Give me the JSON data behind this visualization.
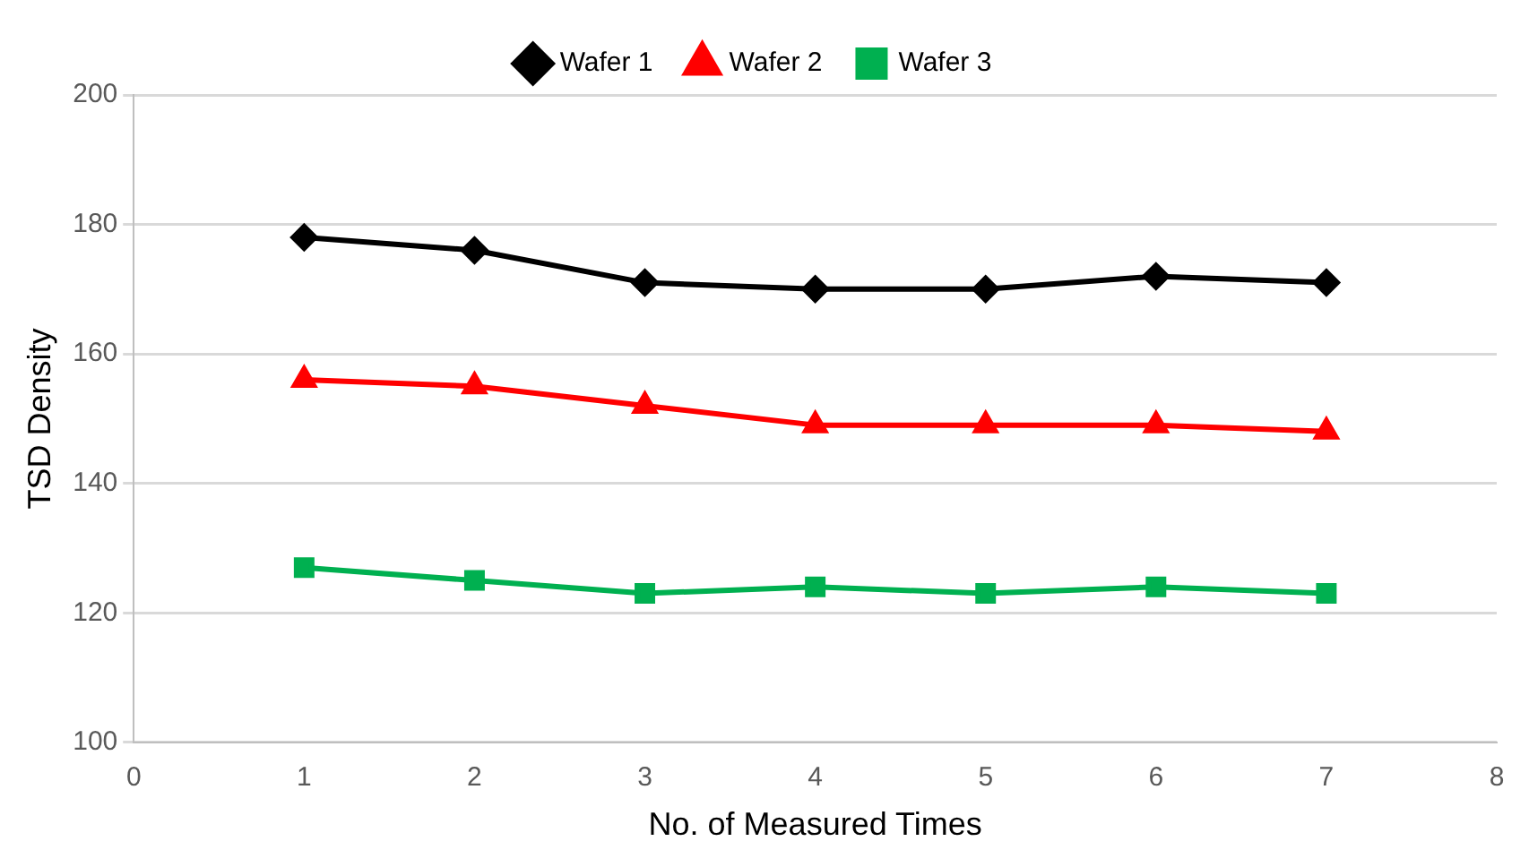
{
  "chart_data": {
    "type": "line",
    "xlabel": "No. of Measured Times",
    "ylabel": "TSD Density",
    "x": [
      1,
      2,
      3,
      4,
      5,
      6,
      7
    ],
    "series": [
      {
        "name": "Wafer 1",
        "color": "#000000",
        "marker": "diamond",
        "values": [
          178,
          176,
          171,
          170,
          170,
          172,
          171
        ]
      },
      {
        "name": "Wafer 2",
        "color": "#ff0000",
        "marker": "triangle",
        "values": [
          156,
          155,
          152,
          149,
          149,
          149,
          148
        ]
      },
      {
        "name": "Wafer 3",
        "color": "#00b050",
        "marker": "square",
        "values": [
          127,
          125,
          123,
          124,
          123,
          124,
          123
        ]
      }
    ],
    "xlim": [
      0,
      8
    ],
    "xticks": [
      0,
      1,
      2,
      3,
      4,
      5,
      6,
      7,
      8
    ],
    "ylim": [
      100,
      200
    ],
    "yticks": [
      100,
      120,
      140,
      160,
      180,
      200
    ],
    "grid": "y",
    "legend": "top",
    "line_style": "solid"
  }
}
